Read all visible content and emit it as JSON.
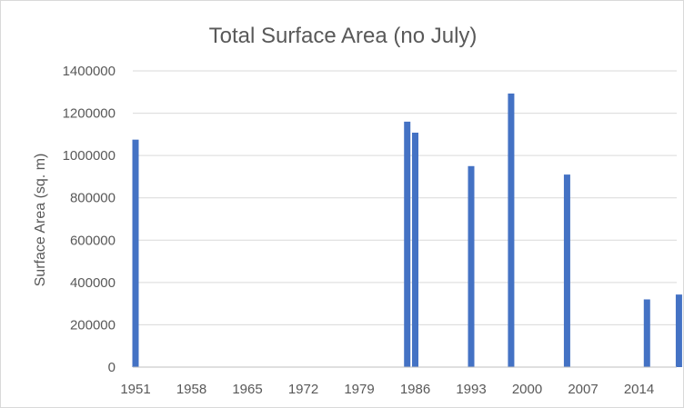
{
  "chart_data": {
    "type": "bar",
    "title": "Total Surface Area (no July)",
    "xlabel": "",
    "ylabel": "Surface Area (sq. m)",
    "ylim": [
      0,
      1400000
    ],
    "yticks": [
      0,
      200000,
      400000,
      600000,
      800000,
      1000000,
      1200000,
      1400000
    ],
    "ytick_labels": [
      "0",
      "200000",
      "400000",
      "600000",
      "800000",
      "1000000",
      "1200000",
      "1400000"
    ],
    "xlim": [
      1951,
      2018
    ],
    "xticks": [
      1951,
      1958,
      1965,
      1972,
      1979,
      1986,
      1993,
      2000,
      2007,
      2014
    ],
    "xtick_labels": [
      "1951",
      "1958",
      "1965",
      "1972",
      "1979",
      "1986",
      "1993",
      "2000",
      "2007",
      "2014"
    ],
    "grid": true,
    "legend": "none",
    "bar_color": "#4472c4",
    "x": [
      1951,
      1985,
      1986,
      1993,
      1998,
      2005,
      2015,
      2019
    ],
    "values": [
      1075000,
      1160000,
      1108000,
      950000,
      1293000,
      910000,
      320000,
      343000
    ]
  }
}
